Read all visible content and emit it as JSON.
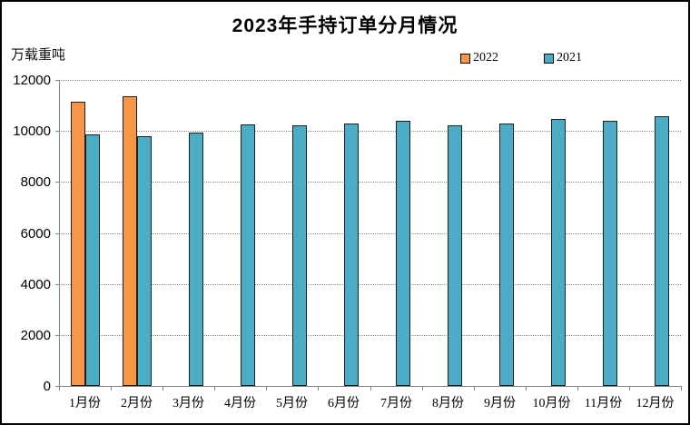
{
  "title": "2023年手持订单分月情况",
  "unit_label": "万载重吨",
  "colors": {
    "series_2022": "#F79646",
    "series_2021": "#4BACC6",
    "bar_border": "#1F1F1F",
    "gridline": "#8C8C8C",
    "axis": "#808080",
    "text": "#000000",
    "background": "#FFFFFF"
  },
  "legend": [
    {
      "label": "2022",
      "color": "#F79646"
    },
    {
      "label": "2021",
      "color": "#4BACC6"
    }
  ],
  "chart_data": {
    "type": "bar",
    "title": "2023年手持订单分月情况",
    "ylabel": "万载重吨",
    "xlabel": "",
    "categories": [
      "1月份",
      "2月份",
      "3月份",
      "4月份",
      "5月份",
      "6月份",
      "7月份",
      "8月份",
      "9月份",
      "10月份",
      "11月份",
      "12月份"
    ],
    "series": [
      {
        "name": "2022",
        "color": "#F79646",
        "values": [
          11140,
          11360,
          null,
          null,
          null,
          null,
          null,
          null,
          null,
          null,
          null,
          null
        ]
      },
      {
        "name": "2021",
        "color": "#4BACC6",
        "values": [
          9850,
          9790,
          9930,
          10250,
          10210,
          10300,
          10390,
          10210,
          10300,
          10480,
          10390,
          10570
        ]
      }
    ],
    "ylim": [
      0,
      12000
    ],
    "ytick_step": 2000,
    "yticks": [
      0,
      2000,
      4000,
      6000,
      8000,
      10000,
      12000
    ],
    "grid": "horizontal-dotted",
    "legend_position": "top-right"
  }
}
